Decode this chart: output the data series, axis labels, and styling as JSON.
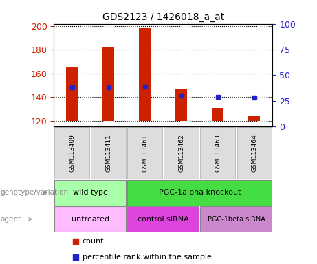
{
  "title": "GDS2123 / 1426018_a_at",
  "samples": [
    "GSM113409",
    "GSM113411",
    "GSM113461",
    "GSM113462",
    "GSM113463",
    "GSM113464"
  ],
  "counts": [
    165,
    182,
    198,
    147,
    131,
    124
  ],
  "percentile_ranks": [
    38,
    38,
    39,
    30,
    29,
    28
  ],
  "ylim_left": [
    115,
    202
  ],
  "ylim_right": [
    0,
    100
  ],
  "yticks_left": [
    120,
    140,
    160,
    180,
    200
  ],
  "yticks_right": [
    0,
    25,
    50,
    75,
    100
  ],
  "bar_bottom": 120,
  "bar_width": 0.32,
  "bar_color": "#cc2200",
  "dot_color": "#2222cc",
  "dot_size": 5,
  "genotype_groups": [
    {
      "label": "wild type",
      "cols": [
        0,
        1
      ],
      "color": "#aaffaa"
    },
    {
      "label": "PGC-1alpha knockout",
      "cols": [
        2,
        3,
        4,
        5
      ],
      "color": "#44dd44"
    }
  ],
  "agent_groups": [
    {
      "label": "untreated",
      "cols": [
        0,
        1
      ],
      "color": "#ffbbff"
    },
    {
      "label": "control siRNA",
      "cols": [
        2,
        3
      ],
      "color": "#dd44dd"
    },
    {
      "label": "PGC-1beta siRNA",
      "cols": [
        4,
        5
      ],
      "color": "#cc88cc"
    }
  ],
  "sample_bg_color": "#dddddd",
  "legend_count_color": "#cc2200",
  "legend_dot_color": "#2222cc",
  "tick_color_left": "#cc2200",
  "tick_color_right": "#2222cc",
  "label_fontsize": 8,
  "sample_fontsize": 6.5,
  "title_fontsize": 10
}
